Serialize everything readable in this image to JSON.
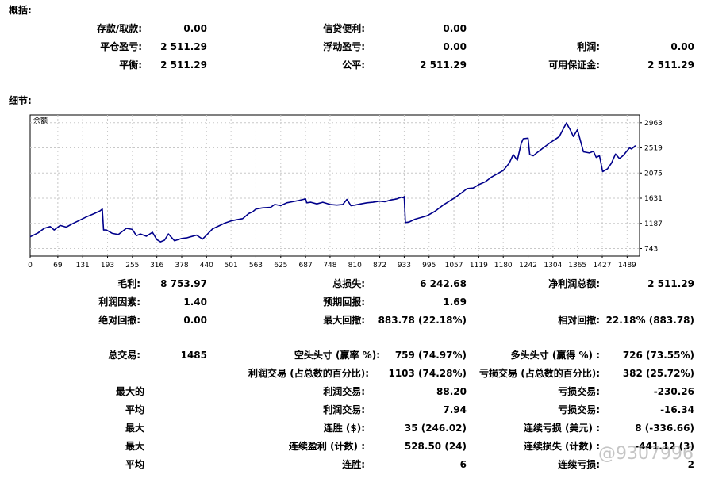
{
  "sections": {
    "summary": "概括:",
    "details": "细节:"
  },
  "summary": {
    "deposit_label": "存款/取款:",
    "deposit": "0.00",
    "credit_label": "信贷便利:",
    "credit": "0.00",
    "closed_pnl_label": "平仓盈亏:",
    "closed_pnl": "2 511.29",
    "floating_pnl_label": "浮动盈亏:",
    "floating_pnl": "0.00",
    "profit_label": "利润:",
    "profit": "0.00",
    "balance_label": "平衡:",
    "balance": "2 511.29",
    "equity_label": "公平:",
    "equity": "2 511.29",
    "free_margin_label": "可用保证金:",
    "free_margin": "2 511.29"
  },
  "stats": {
    "gross_profit_label": "毛利:",
    "gross_profit": "8 753.97",
    "gross_loss_label": "总损失:",
    "gross_loss": "6 242.68",
    "net_profit_label": "净利润总额:",
    "net_profit": "2 511.29",
    "profit_factor_label": "利润因素:",
    "profit_factor": "1.40",
    "expected_payoff_label": "预期回报:",
    "expected_payoff": "1.69",
    "abs_drawdown_label": "绝对回撤:",
    "abs_drawdown": "0.00",
    "max_drawdown_label": "最大回撤:",
    "max_drawdown": "883.78 (22.18%)",
    "rel_drawdown_label": "相对回撤:",
    "rel_drawdown": "22.18% (883.78)",
    "total_trades_label": "总交易:",
    "total_trades": "1485",
    "short_label": "空头头寸 (赢率 %):",
    "short": "759 (74.97%)",
    "long_label": "多头头寸 (赢得 %) :",
    "long": "726 (73.55%)",
    "profit_trades_label": "利润交易 (占总数的百分比):",
    "profit_trades": "1103 (74.28%)",
    "loss_trades_label": "亏损交易 (占总数的百分比):",
    "loss_trades": "382 (25.72%)",
    "largest_label": "最大的",
    "largest_profit_label": "利润交易:",
    "largest_profit": "88.20",
    "largest_loss_label": "亏损交易:",
    "largest_loss": "-230.26",
    "average_label": "平均",
    "avg_profit_label": "利润交易:",
    "avg_profit": "7.94",
    "avg_loss_label": "亏损交易:",
    "avg_loss": "-16.34",
    "max1_label": "最大",
    "max_wins_label": "连胜 ($):",
    "max_wins": "35 (246.02)",
    "max_losses_label": "连续亏损 (美元) :",
    "max_losses": "8 (-336.66)",
    "max2_label": "最大",
    "max_profit_label": "连续盈利 (计数) :",
    "max_profit": "528.50 (24)",
    "max_loss_label": "连续损失 (计数) :",
    "max_loss": "-441.12 (3)",
    "avg2_label": "平均",
    "avg_wins_label": "连胜:",
    "avg_wins": "6",
    "avg_losses_label": "连续亏损:",
    "avg_losses": "2"
  },
  "watermark": "@9307996",
  "chart_data": {
    "type": "line",
    "title": "余额",
    "x_ticks": [
      "0",
      "69",
      "131",
      "193",
      "255",
      "316",
      "378",
      "440",
      "501",
      "563",
      "625",
      "687",
      "748",
      "810",
      "872",
      "933",
      "995",
      "1057",
      "1119",
      "1180",
      "1242",
      "1304",
      "1365",
      "1427",
      "1489"
    ],
    "y_ticks": [
      "743",
      "1187",
      "1631",
      "2075",
      "2519",
      "2963"
    ],
    "xlim": [
      0,
      1520
    ],
    "ylim": [
      610,
      3100
    ],
    "grid": true,
    "line_color": "#00008b",
    "series": [
      {
        "x": [
          0,
          20,
          35,
          50,
          60,
          75,
          90,
          105,
          120,
          140,
          160,
          175,
          180,
          183,
          190,
          205,
          220,
          240,
          255,
          265,
          275,
          290,
          305,
          316,
          325,
          335,
          345,
          360,
          378,
          390,
          400,
          415,
          430,
          440,
          455,
          470,
          485,
          501,
          515,
          530,
          545,
          555,
          563,
          580,
          600,
          610,
          625,
          640,
          655,
          670,
          687,
          690,
          700,
          715,
          730,
          748,
          765,
          780,
          790,
          800,
          810,
          825,
          840,
          855,
          872,
          885,
          900,
          915,
          925,
          930,
          933,
          936,
          945,
          960,
          975,
          990,
          1010,
          1030,
          1057,
          1075,
          1090,
          1105,
          1119,
          1135,
          1150,
          1165,
          1180,
          1195,
          1205,
          1215,
          1225,
          1230,
          1242,
          1246,
          1255,
          1265,
          1280,
          1295,
          1310,
          1320,
          1330,
          1338,
          1342,
          1347,
          1355,
          1365,
          1380,
          1395,
          1405,
          1412,
          1420,
          1428,
          1440,
          1450,
          1460,
          1470,
          1480,
          1488,
          1495,
          1500,
          1510
        ],
        "y": [
          950,
          1020,
          1100,
          1130,
          1070,
          1150,
          1120,
          1180,
          1230,
          1300,
          1360,
          1410,
          1440,
          1070,
          1070,
          1010,
          990,
          1100,
          1080,
          970,
          1000,
          960,
          1030,
          900,
          860,
          890,
          1000,
          880,
          920,
          930,
          950,
          980,
          910,
          980,
          1090,
          1140,
          1190,
          1230,
          1250,
          1270,
          1360,
          1390,
          1440,
          1460,
          1470,
          1520,
          1500,
          1550,
          1570,
          1590,
          1620,
          1550,
          1560,
          1530,
          1560,
          1520,
          1510,
          1520,
          1610,
          1500,
          1510,
          1530,
          1550,
          1560,
          1580,
          1570,
          1600,
          1620,
          1650,
          1640,
          1660,
          1200,
          1210,
          1260,
          1290,
          1320,
          1400,
          1510,
          1630,
          1720,
          1800,
          1810,
          1870,
          1920,
          2000,
          2060,
          2120,
          2250,
          2400,
          2300,
          2600,
          2680,
          2690,
          2400,
          2380,
          2440,
          2520,
          2600,
          2670,
          2720,
          2860,
          2960,
          2900,
          2840,
          2720,
          2840,
          2450,
          2430,
          2460,
          2350,
          2380,
          2100,
          2150,
          2250,
          2410,
          2330,
          2390,
          2460,
          2520,
          2500,
          2560
        ]
      }
    ]
  }
}
